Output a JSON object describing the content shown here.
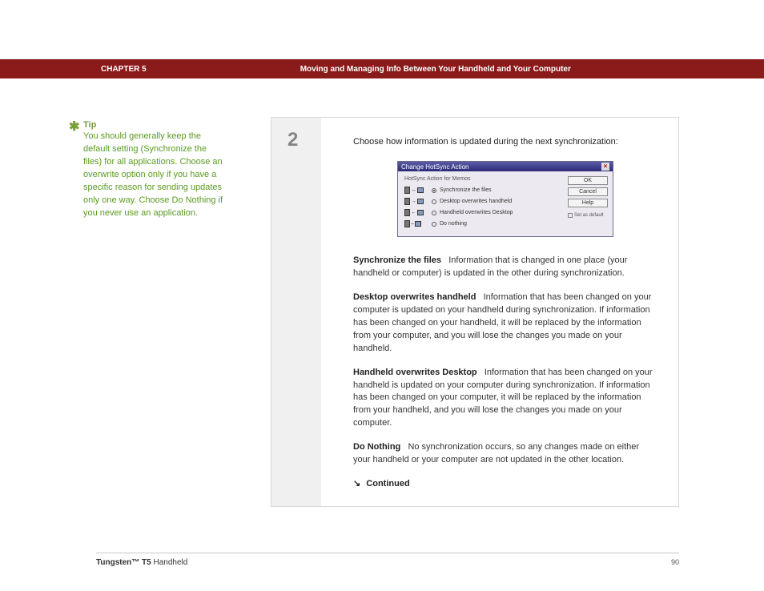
{
  "header": {
    "chapter_label": "CHAPTER 5",
    "chapter_title": "Moving and Managing Info Between Your Handheld and Your Computer",
    "band_color": "#8b1a1a"
  },
  "tip": {
    "label": "Tip",
    "asterisk": "✱",
    "body": "You should generally keep the default setting (Synchronize the files) for all applications. Choose an overwrite option only if you have a specific reason for sending updates only one way. Choose Do Nothing if you never use an application.",
    "label_color": "#7aa038",
    "body_color": "#5a9b1f"
  },
  "step": {
    "number": "2",
    "instruction": "Choose how information is updated during the next synchronization:",
    "step_color": "#858585",
    "bar_bg": "#f0f0f0"
  },
  "dialog": {
    "title": "Change HotSync Action",
    "subhead": "HotSync Action for Memos",
    "options": [
      {
        "label": "Synchronize the files",
        "selected": true,
        "arrow": "↔"
      },
      {
        "label": "Desktop overwrites handheld",
        "selected": false,
        "arrow": "→"
      },
      {
        "label": "Handheld overwrites Desktop",
        "selected": false,
        "arrow": "←"
      },
      {
        "label": "Do nothing",
        "selected": false,
        "arrow": "–"
      }
    ],
    "buttons": {
      "ok": "OK",
      "cancel": "Cancel",
      "help": "Help"
    },
    "checkbox": "Set as default",
    "bg_color": "#eceaf0",
    "titlebar_gradient": [
      "#5b5ba8",
      "#2b2b78"
    ]
  },
  "descs": [
    {
      "term": "Synchronize the files",
      "body": "Information that is changed in one place (your handheld or computer) is updated in the other during synchronization."
    },
    {
      "term": "Desktop overwrites handheld",
      "body": "Information that has been changed on your computer is updated on your handheld during synchronization. If information has been changed on your handheld, it will be replaced by the information from your computer, and you will lose the changes you made on your handheld."
    },
    {
      "term": "Handheld overwrites Desktop",
      "body": "Information that has been changed on your handheld is updated on your computer during synchronization. If information has been changed on your computer, it will be replaced by the information from your handheld, and you will lose the changes you made on your computer."
    },
    {
      "term": "Do Nothing",
      "body": "No synchronization occurs, so any changes made on either your handheld or your computer are not updated in the other location."
    }
  ],
  "continued": {
    "arrow": "↘",
    "label": "Continued"
  },
  "footer": {
    "product_bold": "Tungsten™ T5",
    "product_rest": " Handheld",
    "page": "90"
  }
}
